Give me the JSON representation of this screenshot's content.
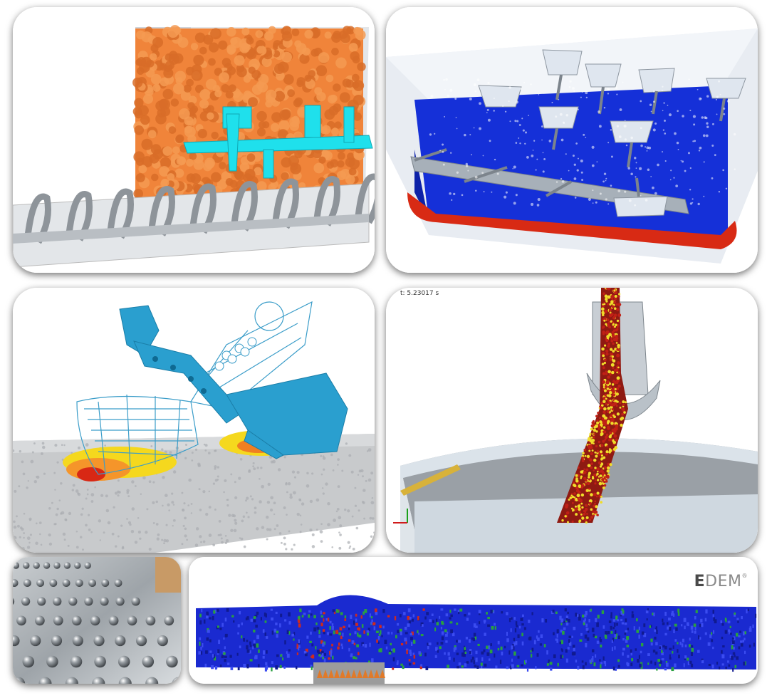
{
  "tiles": [
    {
      "name": "hopper-screw-conveyor-simulation"
    },
    {
      "name": "paddle-mixer-simulation"
    },
    {
      "name": "excavator-bucket-simulation"
    },
    {
      "name": "chute-transfer-simulation",
      "timestamp": "t: 5.23017 s"
    },
    {
      "name": "stud-plate-photo"
    },
    {
      "name": "particle-bed-simulation",
      "logo_mark": "E",
      "logo_text": "DEM",
      "logo_reg": "®"
    }
  ],
  "colors": {
    "particles_orange": "#f0843a",
    "mixer_blue": "#1530d8",
    "mixer_red": "#d82a14",
    "cyan_geometry": "#1fe0ec",
    "bucket_blue": "#2a9fcf",
    "chute_red": "#a01a12",
    "chute_yellow": "#e6d42a",
    "bed_blue": "#1a2ad0",
    "bed_green": "#2aa040"
  }
}
